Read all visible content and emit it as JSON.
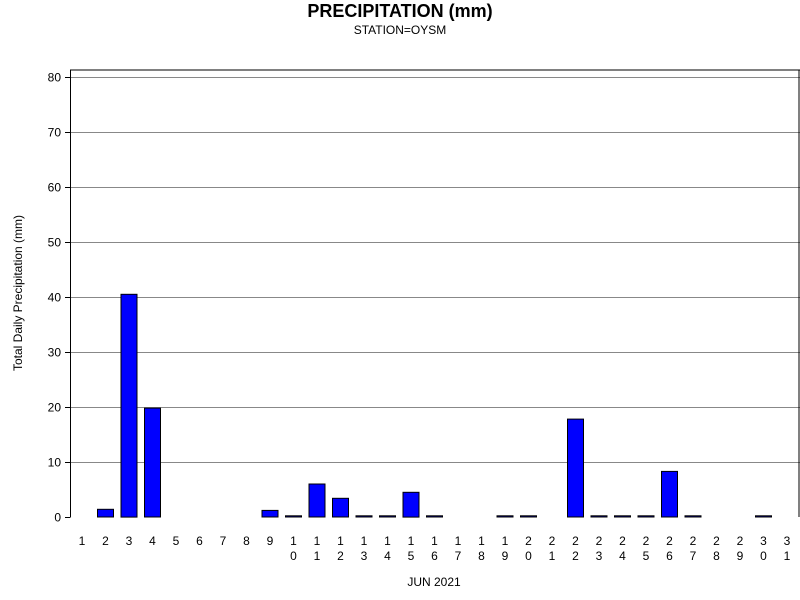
{
  "chart_data": {
    "type": "bar",
    "title": "PRECIPITATION (mm)",
    "subtitle": "STATION=OYSM",
    "xlabel": "JUN 2021",
    "ylabel": "Total Daily Precipitation (mm)",
    "ylim": [
      0,
      80
    ],
    "yticks": [
      0,
      10,
      20,
      30,
      40,
      50,
      60,
      70,
      80
    ],
    "grid": true,
    "bar_color": "#0000ff",
    "categories": [
      "1",
      "2",
      "3",
      "4",
      "5",
      "6",
      "7",
      "8",
      "9",
      "10",
      "11",
      "12",
      "13",
      "14",
      "15",
      "16",
      "17",
      "18",
      "19",
      "20",
      "21",
      "22",
      "23",
      "24",
      "25",
      "26",
      "27",
      "28",
      "29",
      "30",
      "31"
    ],
    "values": [
      null,
      1.4,
      40.5,
      19.8,
      null,
      null,
      null,
      null,
      1.2,
      0.1,
      6.0,
      3.4,
      0.1,
      0.1,
      4.5,
      0.1,
      null,
      null,
      0.1,
      0.1,
      null,
      17.8,
      0.1,
      0.1,
      0.1,
      8.3,
      0.1,
      null,
      null,
      0.1,
      null
    ]
  }
}
